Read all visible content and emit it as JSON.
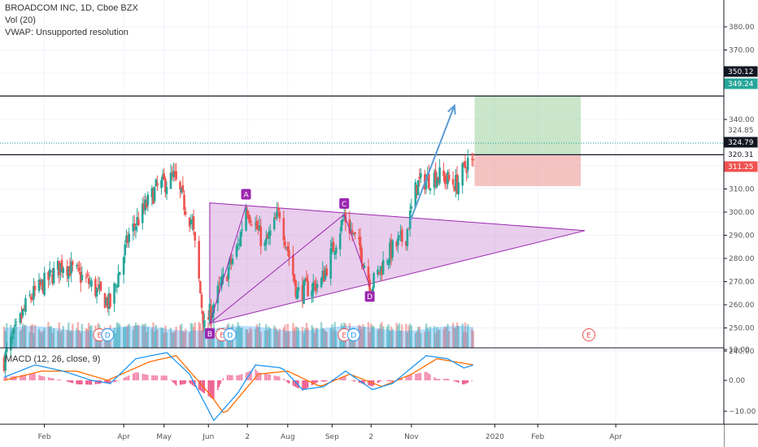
{
  "legend": {
    "symbol_line": "BROADCOM INC, 1D, Cboe BZX",
    "vol_line": "Vol (20)",
    "vwap_line": "VWAP: Unsupported resolution",
    "macd_line": "MACD (12, 26, close, 9)"
  },
  "colors": {
    "up": "#26a69a",
    "down": "#ef5350",
    "pattern": "#9c27b0",
    "pattern_fill": "#ce93d8",
    "arrow": "#5b9bd5",
    "macd": "#2196f3",
    "signal": "#ff6d00",
    "hist": "#e91e63",
    "profit": "#a5d6a7",
    "stop": "#ef9a9a"
  },
  "chart_data": [
    {
      "type": "candlestick",
      "panel": "price",
      "title": "BROADCOM INC, 1D, Cboe BZX",
      "x_tick_labels": [
        "Feb",
        "Apr",
        "May",
        "Jun",
        "2",
        "Aug",
        "Sep",
        "2",
        "Nov",
        "2020",
        "Feb",
        "Apr"
      ],
      "y_tick_labels": [
        "240.00",
        "250.00",
        "260.00",
        "270.00",
        "280.00",
        "290.00",
        "300.00",
        "310.00",
        "320.00",
        "330.00",
        "340.00",
        "360.00",
        "370.00",
        "380.00"
      ],
      "ylim": [
        234,
        382
      ],
      "price_tags": [
        {
          "label": "350.12",
          "value": 350.12,
          "style": "dark"
        },
        {
          "label": "349.24",
          "value": 349.24,
          "style": "green"
        },
        {
          "label": "324.85",
          "value": 324.85,
          "style": "gray"
        },
        {
          "label": "324.79",
          "value": 324.79,
          "style": "dark"
        },
        {
          "label": "320.31",
          "value": 320.31,
          "style": "white"
        },
        {
          "label": "311.25",
          "value": 311.25,
          "style": "red"
        }
      ],
      "horizontal_lines": [
        350.12,
        324.79
      ],
      "pattern_points": [
        {
          "label": "A",
          "date": "2019-07-01",
          "price": 303
        },
        {
          "label": "B",
          "date": "2019-06-04",
          "price": 252
        },
        {
          "label": "C",
          "date": "2019-09-12",
          "price": 299
        },
        {
          "label": "D",
          "date": "2019-10-01",
          "price": 268
        }
      ],
      "triangle": [
        {
          "date": "2019-06-04",
          "price": 304
        },
        {
          "date": "2020-03-09",
          "price": 292
        },
        {
          "date": "2019-06-04",
          "price": 252
        }
      ],
      "position": {
        "entry": 324.79,
        "target": 350.12,
        "stop": 311.25,
        "start": "2019-12-18",
        "end": "2020-03-06"
      },
      "arrow": [
        {
          "date": "2019-10-31",
          "price": 296
        },
        {
          "date": "2019-12-03",
          "price": 346
        }
      ],
      "ohlc_waypoints": [
        {
          "date": "2019-01-02",
          "close": 236
        },
        {
          "date": "2019-01-20",
          "close": 262
        },
        {
          "date": "2019-02-15",
          "close": 278
        },
        {
          "date": "2019-03-05",
          "close": 270
        },
        {
          "date": "2019-03-22",
          "close": 260
        },
        {
          "date": "2019-04-05",
          "close": 290
        },
        {
          "date": "2019-04-25",
          "close": 310
        },
        {
          "date": "2019-05-08",
          "close": 315
        },
        {
          "date": "2019-05-22",
          "close": 295
        },
        {
          "date": "2019-05-31",
          "close": 250
        },
        {
          "date": "2019-06-10",
          "close": 265
        },
        {
          "date": "2019-06-25",
          "close": 285
        },
        {
          "date": "2019-07-01",
          "close": 303
        },
        {
          "date": "2019-07-15",
          "close": 285
        },
        {
          "date": "2019-07-26",
          "close": 300
        },
        {
          "date": "2019-08-08",
          "close": 265
        },
        {
          "date": "2019-08-26",
          "close": 270
        },
        {
          "date": "2019-09-12",
          "close": 298
        },
        {
          "date": "2019-09-25",
          "close": 282
        },
        {
          "date": "2019-10-02",
          "close": 268
        },
        {
          "date": "2019-10-15",
          "close": 282
        },
        {
          "date": "2019-10-28",
          "close": 290
        },
        {
          "date": "2019-11-05",
          "close": 312
        },
        {
          "date": "2019-11-20",
          "close": 316
        },
        {
          "date": "2019-12-05",
          "close": 312
        },
        {
          "date": "2019-12-13",
          "close": 322
        },
        {
          "date": "2019-12-17",
          "close": 320.31
        }
      ],
      "events": [
        {
          "label": "E",
          "date": "2019-03-14"
        },
        {
          "label": "D",
          "date": "2019-03-20"
        },
        {
          "label": "E",
          "date": "2019-06-13"
        },
        {
          "label": "D",
          "date": "2019-06-19"
        },
        {
          "label": "E",
          "date": "2019-09-12"
        },
        {
          "label": "D",
          "date": "2019-09-19"
        },
        {
          "label": "E",
          "date": "2020-03-12"
        }
      ]
    },
    {
      "type": "bar",
      "panel": "volume",
      "title": "Vol (20)"
    },
    {
      "type": "line",
      "panel": "macd",
      "title": "MACD (12, 26, close, 9)",
      "y_tick_labels": [
        "10.00",
        "0.00",
        "−10.00"
      ],
      "ylim": [
        -14,
        11
      ],
      "series": [
        {
          "name": "MACD",
          "waypoints": [
            {
              "date": "2019-01-02",
              "value": 1
            },
            {
              "date": "2019-01-25",
              "value": 5
            },
            {
              "date": "2019-02-15",
              "value": 3
            },
            {
              "date": "2019-03-08",
              "value": 0
            },
            {
              "date": "2019-03-22",
              "value": -1
            },
            {
              "date": "2019-04-10",
              "value": 7
            },
            {
              "date": "2019-05-03",
              "value": 9
            },
            {
              "date": "2019-05-20",
              "value": 2
            },
            {
              "date": "2019-06-07",
              "value": -13
            },
            {
              "date": "2019-06-25",
              "value": -4
            },
            {
              "date": "2019-07-08",
              "value": 5
            },
            {
              "date": "2019-07-28",
              "value": 4
            },
            {
              "date": "2019-08-12",
              "value": -3
            },
            {
              "date": "2019-08-28",
              "value": -2
            },
            {
              "date": "2019-09-13",
              "value": 3
            },
            {
              "date": "2019-10-03",
              "value": -3
            },
            {
              "date": "2019-10-18",
              "value": -1
            },
            {
              "date": "2019-11-12",
              "value": 8
            },
            {
              "date": "2019-11-28",
              "value": 7
            },
            {
              "date": "2019-12-10",
              "value": 4
            },
            {
              "date": "2019-12-17",
              "value": 5
            }
          ]
        },
        {
          "name": "Signal",
          "waypoints": [
            {
              "date": "2019-01-02",
              "value": 0
            },
            {
              "date": "2019-01-30",
              "value": 3
            },
            {
              "date": "2019-02-25",
              "value": 3
            },
            {
              "date": "2019-03-20",
              "value": 0
            },
            {
              "date": "2019-04-20",
              "value": 6
            },
            {
              "date": "2019-05-10",
              "value": 8
            },
            {
              "date": "2019-06-05",
              "value": -5
            },
            {
              "date": "2019-06-15",
              "value": -11
            },
            {
              "date": "2019-07-10",
              "value": 2
            },
            {
              "date": "2019-08-01",
              "value": 3
            },
            {
              "date": "2019-08-25",
              "value": -2
            },
            {
              "date": "2019-09-16",
              "value": 2
            },
            {
              "date": "2019-10-10",
              "value": -2
            },
            {
              "date": "2019-11-01",
              "value": 2
            },
            {
              "date": "2019-11-20",
              "value": 7
            },
            {
              "date": "2019-12-17",
              "value": 5
            }
          ]
        }
      ]
    }
  ]
}
